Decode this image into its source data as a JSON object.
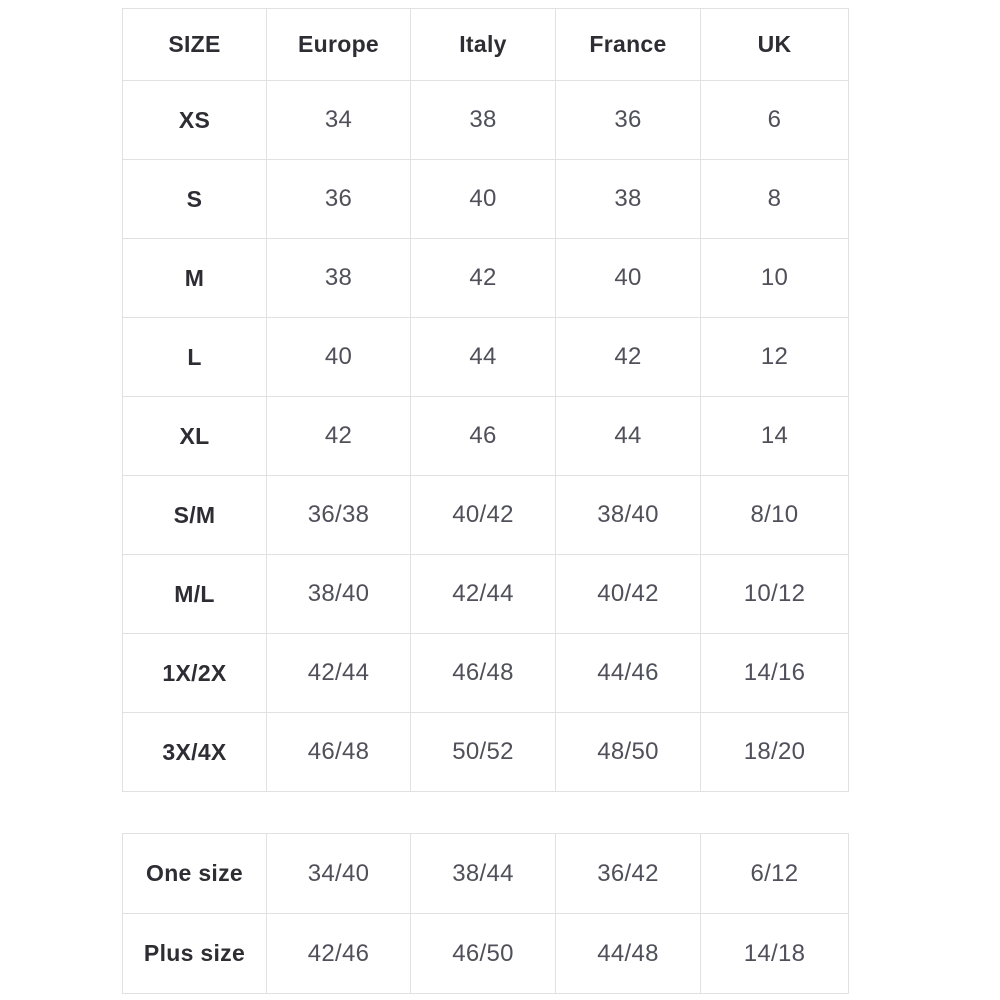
{
  "colors": {
    "background": "#ffffff",
    "border": "#e1e1e1",
    "header_text": "#2d2d33",
    "cell_text": "#50505a"
  },
  "size_chart": {
    "headers": {
      "size": "SIZE",
      "europe": "Europe",
      "italy": "Italy",
      "france": "France",
      "uk": "UK"
    },
    "rows": [
      {
        "label": "XS",
        "values": [
          "34",
          "38",
          "36",
          "6"
        ]
      },
      {
        "label": "S",
        "values": [
          "36",
          "40",
          "38",
          "8"
        ]
      },
      {
        "label": "M",
        "values": [
          "38",
          "42",
          "40",
          "10"
        ]
      },
      {
        "label": "L",
        "values": [
          "40",
          "44",
          "42",
          "12"
        ]
      },
      {
        "label": "XL",
        "values": [
          "42",
          "46",
          "44",
          "14"
        ]
      },
      {
        "label": "S/M",
        "values": [
          "36/38",
          "40/42",
          "38/40",
          "8/10"
        ]
      },
      {
        "label": "M/L",
        "values": [
          "38/40",
          "42/44",
          "40/42",
          "10/12"
        ]
      },
      {
        "label": "1X/2X",
        "values": [
          "42/44",
          "46/48",
          "44/46",
          "14/16"
        ]
      },
      {
        "label": "3X/4X",
        "values": [
          "46/48",
          "50/52",
          "48/50",
          "18/20"
        ]
      }
    ]
  },
  "special_sizes": {
    "rows": [
      {
        "label": "One size",
        "values": [
          "34/40",
          "38/44",
          "36/42",
          "6/12"
        ]
      },
      {
        "label": "Plus size",
        "values": [
          "42/46",
          "46/50",
          "44/48",
          "14/18"
        ]
      }
    ]
  }
}
